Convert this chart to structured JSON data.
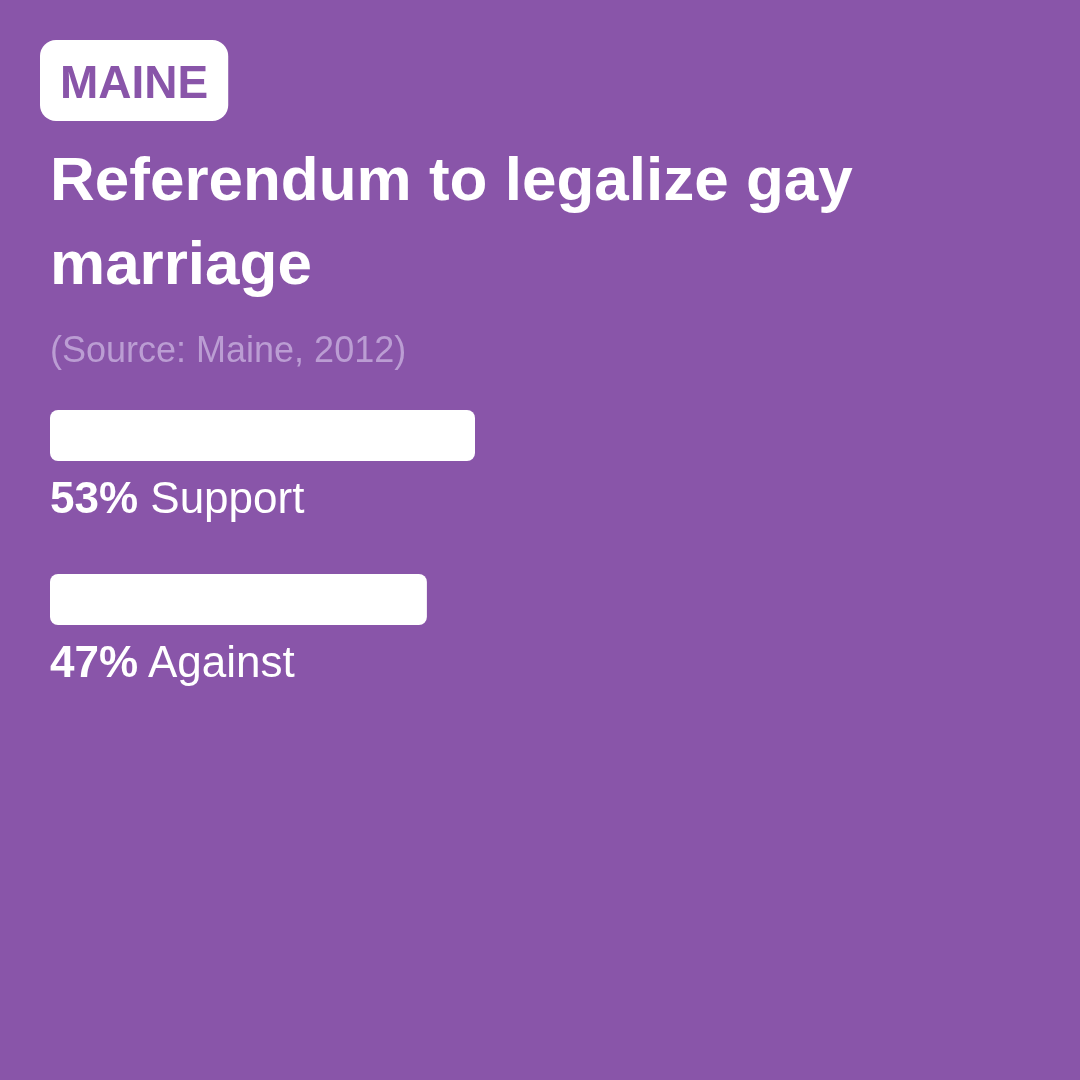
{
  "chart_data": {
    "type": "bar",
    "orientation": "horizontal",
    "title": "Referendum to legalize gay marriage",
    "annotations": [
      "MAINE",
      "(Source: Maine, 2012)"
    ],
    "categories": [
      "Support",
      "Against"
    ],
    "values": [
      53,
      47
    ],
    "value_labels": [
      "53%",
      "47%"
    ],
    "color": "#ffffff"
  }
}
